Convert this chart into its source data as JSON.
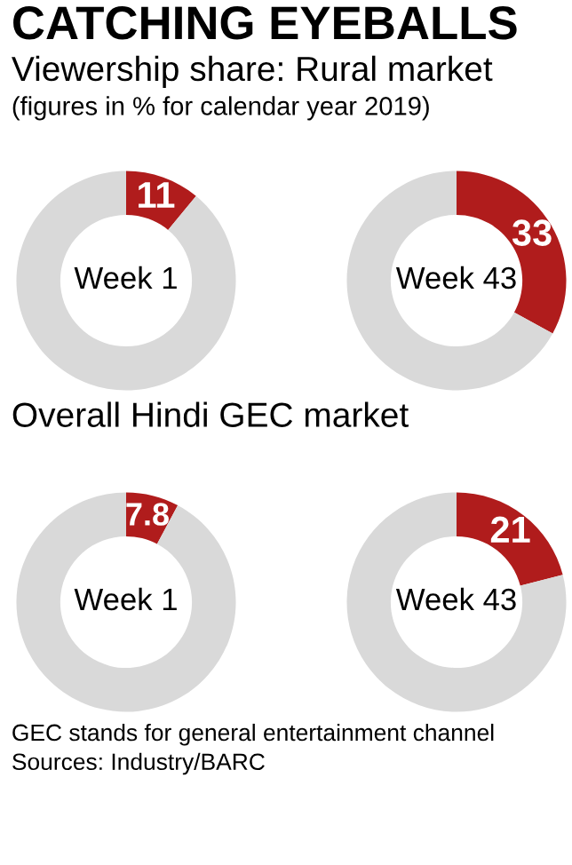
{
  "chart_data": [
    {
      "type": "other",
      "title": "CATCHING EYEBALLS",
      "subtitle": "Viewership share: Rural market",
      "annotations": [
        "(figures in % for calendar year 2019)"
      ]
    },
    {
      "type": "donut",
      "categories": [
        null,
        null
      ],
      "values": [
        11,
        89
      ],
      "colors": [
        "#b01c1c",
        "#d9d9d9"
      ],
      "value_labels": [
        "11",
        null
      ],
      "annotations": [
        "Week 1"
      ]
    },
    {
      "type": "donut",
      "categories": [
        null,
        null
      ],
      "values": [
        33,
        67
      ],
      "colors": [
        "#b01c1c",
        "#d9d9d9"
      ],
      "value_labels": [
        "33",
        null
      ],
      "annotations": [
        "Week 43"
      ]
    },
    {
      "type": "other",
      "subtitle": "Overall Hindi GEC market"
    },
    {
      "type": "donut",
      "categories": [
        null,
        null
      ],
      "values": [
        7.8,
        92.2
      ],
      "colors": [
        "#b01c1c",
        "#d9d9d9"
      ],
      "value_labels": [
        "7.8",
        null
      ],
      "annotations": [
        "Week 1"
      ]
    },
    {
      "type": "donut",
      "categories": [
        null,
        null
      ],
      "values": [
        21,
        79
      ],
      "colors": [
        "#b01c1c",
        "#d9d9d9"
      ],
      "value_labels": [
        "21",
        null
      ],
      "annotations": [
        "Week 43"
      ]
    },
    {
      "type": "other",
      "annotations": [
        "GEC stands for general entertainment channel",
        "Sources: Industry/BARC"
      ]
    }
  ]
}
